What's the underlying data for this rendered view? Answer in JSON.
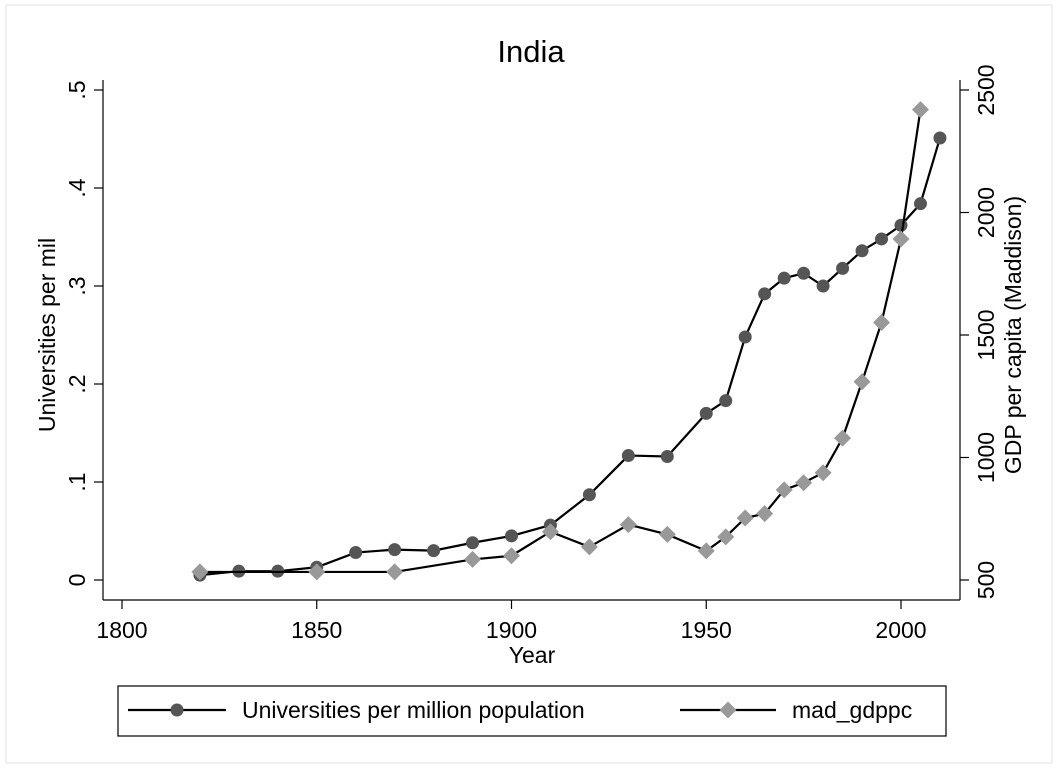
{
  "chart_data": {
    "type": "line",
    "title": "India",
    "xlabel": "Year",
    "ylabel_left": "Universities per mil",
    "ylabel_right": "GDP per capita (Maddison)",
    "xlim": [
      1800,
      2010
    ],
    "ylim_left": [
      0,
      0.5
    ],
    "ylim_right": [
      500,
      2500
    ],
    "x_ticks": [
      "1800",
      "1850",
      "1900",
      "1950",
      "2000"
    ],
    "y_left_ticks": [
      "0",
      ".1",
      ".2",
      ".3",
      ".4",
      ".5"
    ],
    "y_right_ticks": [
      "500",
      "1000",
      "1500",
      "2000",
      "2500"
    ],
    "grid": false,
    "legend_position": "bottom",
    "series": [
      {
        "name": "Universities per million population",
        "axis": "left",
        "marker": "circle",
        "color": "#555555",
        "points": [
          [
            1820,
            0.005
          ],
          [
            1830,
            0.009
          ],
          [
            1840,
            0.009
          ],
          [
            1850,
            0.013
          ],
          [
            1860,
            0.028
          ],
          [
            1870,
            0.031
          ],
          [
            1880,
            0.03
          ],
          [
            1890,
            0.038
          ],
          [
            1900,
            0.045
          ],
          [
            1910,
            0.056
          ],
          [
            1920,
            0.087
          ],
          [
            1930,
            0.127
          ],
          [
            1940,
            0.126
          ],
          [
            1950,
            0.17
          ],
          [
            1955,
            0.183
          ],
          [
            1960,
            0.248
          ],
          [
            1965,
            0.292
          ],
          [
            1970,
            0.308
          ],
          [
            1975,
            0.313
          ],
          [
            1980,
            0.3
          ],
          [
            1985,
            0.318
          ],
          [
            1990,
            0.336
          ],
          [
            1995,
            0.348
          ],
          [
            2000,
            0.362
          ],
          [
            2005,
            0.384
          ],
          [
            2010,
            0.451
          ]
        ]
      },
      {
        "name": "mad_gdppc",
        "axis": "right",
        "marker": "diamond",
        "color": "#999999",
        "points": [
          [
            1820,
            533
          ],
          [
            1850,
            533
          ],
          [
            1870,
            533
          ],
          [
            1890,
            584
          ],
          [
            1900,
            599
          ],
          [
            1910,
            697
          ],
          [
            1920,
            635
          ],
          [
            1930,
            726
          ],
          [
            1940,
            686
          ],
          [
            1950,
            619
          ],
          [
            1955,
            676
          ],
          [
            1960,
            753
          ],
          [
            1965,
            771
          ],
          [
            1970,
            868
          ],
          [
            1975,
            897
          ],
          [
            1980,
            938
          ],
          [
            1985,
            1079
          ],
          [
            1990,
            1309
          ],
          [
            1995,
            1551
          ],
          [
            2000,
            1892
          ],
          [
            2005,
            2420
          ]
        ]
      }
    ]
  }
}
